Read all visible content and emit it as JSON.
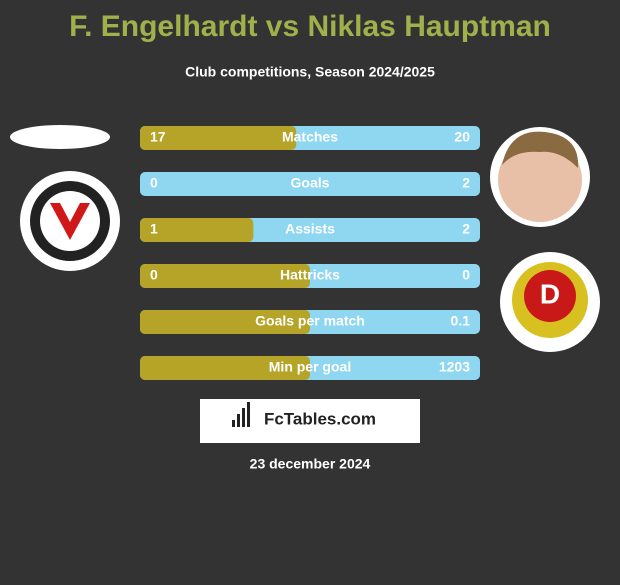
{
  "header": {
    "title": "F. Engelhardt vs Niklas Hauptman",
    "subtitle": "Club competitions, Season 2024/2025"
  },
  "rows": [
    {
      "label": "Matches",
      "left": 17,
      "right": 20
    },
    {
      "label": "Goals",
      "left": 0,
      "right": 2
    },
    {
      "label": "Assists",
      "left": 1,
      "right": 2
    },
    {
      "label": "Hattricks",
      "left": 0,
      "right": 0
    },
    {
      "label": "Goals per match",
      "left": null,
      "right": 0.1
    },
    {
      "label": "Min per goal",
      "left": null,
      "right": 1203
    }
  ],
  "colors": {
    "left": "#b5a428",
    "right": "#8fd6f0"
  },
  "brand": "FcTables.com",
  "date": "23 december 2024"
}
